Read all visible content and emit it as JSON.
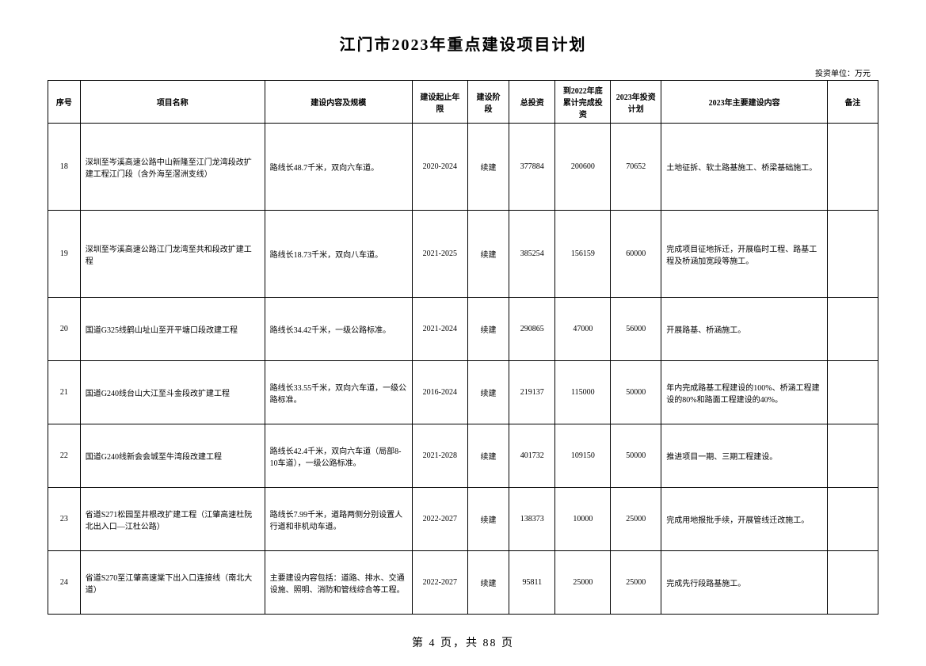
{
  "title": "江门市2023年重点建设项目计划",
  "unit_label": "投资单位：万元",
  "headers": {
    "seq": "序号",
    "name": "项目名称",
    "content": "建设内容及规模",
    "period": "建设起止年限",
    "stage": "建设阶段",
    "total": "总投资",
    "completed": "到2022年底累计完成投资",
    "plan": "2023年投资计划",
    "main": "2023年主要建设内容",
    "remark": "备注"
  },
  "rows": [
    {
      "seq": "18",
      "name": "深圳至岑溪高速公路中山新隆至江门龙湾段改扩建工程江门段（含外海至滘洲支线）",
      "content": "路线长48.7千米，双向六车道。",
      "period": "2020-2024",
      "stage": "续建",
      "total": "377884",
      "completed": "200600",
      "plan": "70652",
      "main": "土地征拆、软土路基施工、桥梁基础施工。",
      "remark": ""
    },
    {
      "seq": "19",
      "name": "深圳至岑溪高速公路江门龙湾至共和段改扩建工程",
      "content": "路线长18.73千米，双向八车道。",
      "period": "2021-2025",
      "stage": "续建",
      "total": "385254",
      "completed": "156159",
      "plan": "60000",
      "main": "完成项目征地拆迁，开展临时工程、路基工程及桥涵加宽段等施工。",
      "remark": ""
    },
    {
      "seq": "20",
      "name": "国道G325线鹤山址山至开平塘口段改建工程",
      "content": "路线长34.42千米，一级公路标准。",
      "period": "2021-2024",
      "stage": "续建",
      "total": "290865",
      "completed": "47000",
      "plan": "56000",
      "main": "开展路基、桥涵施工。",
      "remark": ""
    },
    {
      "seq": "21",
      "name": "国道G240线台山大江至斗金段改扩建工程",
      "content": "路线长33.55千米，双向六车道，一级公路标准。",
      "period": "2016-2024",
      "stage": "续建",
      "total": "219137",
      "completed": "115000",
      "plan": "50000",
      "main": "年内完成路基工程建设的100%、桥涵工程建设的80%和路面工程建设的40%。",
      "remark": ""
    },
    {
      "seq": "22",
      "name": "国道G240线新会会城至牛湾段改建工程",
      "content": "路线长42.4千米，双向六车道（局部8-10车道），一级公路标准。",
      "period": "2021-2028",
      "stage": "续建",
      "total": "401732",
      "completed": "109150",
      "plan": "50000",
      "main": "推进项目一期、三期工程建设。",
      "remark": ""
    },
    {
      "seq": "23",
      "name": "省道S271松园至井根改扩建工程（江肇高速杜阮北出入口—江杜公路）",
      "content": "路线长7.99千米，道路两侧分别设置人行道和非机动车道。",
      "period": "2022-2027",
      "stage": "续建",
      "total": "138373",
      "completed": "10000",
      "plan": "25000",
      "main": "完成用地报批手续，开展管线迁改施工。",
      "remark": ""
    },
    {
      "seq": "24",
      "name": "省道S270至江肇高速棠下出入口连接线（南北大道）",
      "content": "主要建设内容包括：道路、排水、交通设施、照明、消防和管线综合等工程。",
      "period": "2022-2027",
      "stage": "续建",
      "total": "95811",
      "completed": "25000",
      "plan": "25000",
      "main": "完成先行段路基施工。",
      "remark": ""
    }
  ],
  "pager": "第 4 页，共 88 页"
}
